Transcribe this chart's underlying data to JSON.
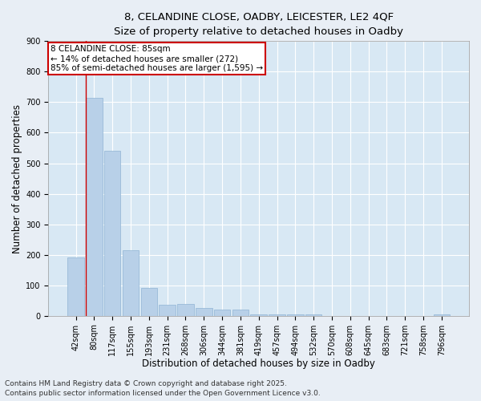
{
  "title1": "8, CELANDINE CLOSE, OADBY, LEICESTER, LE2 4QF",
  "title2": "Size of property relative to detached houses in Oadby",
  "xlabel": "Distribution of detached houses by size in Oadby",
  "ylabel": "Number of detached properties",
  "categories": [
    "42sqm",
    "80sqm",
    "117sqm",
    "155sqm",
    "193sqm",
    "231sqm",
    "268sqm",
    "306sqm",
    "344sqm",
    "381sqm",
    "419sqm",
    "457sqm",
    "494sqm",
    "532sqm",
    "570sqm",
    "608sqm",
    "645sqm",
    "683sqm",
    "721sqm",
    "758sqm",
    "796sqm"
  ],
  "values": [
    190,
    715,
    540,
    215,
    90,
    35,
    40,
    25,
    20,
    20,
    5,
    5,
    5,
    5,
    0,
    0,
    0,
    0,
    0,
    0,
    5
  ],
  "bar_color": "#b8d0e8",
  "bar_edge_color": "#90b4d4",
  "fig_bg_color": "#e8eef5",
  "ax_bg_color": "#d8e8f4",
  "grid_color": "#ffffff",
  "vline_color": "#cc0000",
  "vline_x_index": 1.5,
  "annotation_text": "8 CELANDINE CLOSE: 85sqm\n← 14% of detached houses are smaller (272)\n85% of semi-detached houses are larger (1,595) →",
  "annotation_box_color": "#cc0000",
  "ylim": [
    0,
    900
  ],
  "yticks": [
    0,
    100,
    200,
    300,
    400,
    500,
    600,
    700,
    800,
    900
  ],
  "footer1": "Contains HM Land Registry data © Crown copyright and database right 2025.",
  "footer2": "Contains public sector information licensed under the Open Government Licence v3.0.",
  "title1_fontsize": 9.5,
  "title2_fontsize": 9,
  "axis_label_fontsize": 8.5,
  "tick_fontsize": 7,
  "footer_fontsize": 6.5,
  "annotation_fontsize": 7.5
}
